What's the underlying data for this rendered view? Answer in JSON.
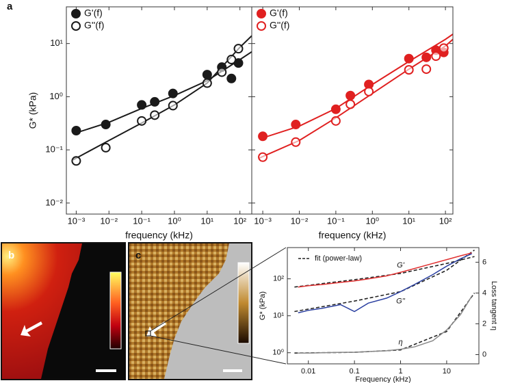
{
  "panels": [
    "a",
    "b",
    "c"
  ],
  "chart_data": [
    {
      "type": "scatter",
      "xlabel": "frequency (kHz)",
      "ylabel": "G* (kPa)",
      "log_x": true,
      "log_y": true,
      "xlim": [
        0.0005,
        230
      ],
      "ylim": [
        0.0062,
        49
      ],
      "xticks": [
        {
          "value": 0.001,
          "label": "10⁻³"
        },
        {
          "value": 0.01,
          "label": "10⁻²"
        },
        {
          "value": 0.1,
          "label": "10⁻¹"
        },
        {
          "value": 1,
          "label": "10⁰"
        },
        {
          "value": 10,
          "label": "10¹"
        },
        {
          "value": 100,
          "label": "10²"
        }
      ],
      "yticks": [
        {
          "value": 0.01,
          "label": "10⁻²"
        },
        {
          "value": 0.1,
          "label": "10⁻¹"
        },
        {
          "value": 1,
          "label": "10⁰"
        },
        {
          "value": 10,
          "label": "10¹"
        }
      ],
      "legend": "upper left",
      "x": [
        0.001,
        0.008,
        0.1,
        0.25,
        0.9,
        10,
        28,
        55,
        90
      ],
      "series": [
        {
          "name": "G'(f)",
          "color": "#1a1a1a",
          "marker": "filled",
          "values": [
            0.23,
            0.3,
            0.7,
            0.8,
            1.15,
            2.6,
            3.6,
            2.2,
            4.3
          ]
        },
        {
          "name": "G''(f)",
          "color": "#1a1a1a",
          "marker": "open",
          "values": [
            0.062,
            0.11,
            0.35,
            0.45,
            0.68,
            1.8,
            2.9,
            5.0,
            8.0
          ]
        }
      ],
      "fits": [
        {
          "color": "#1a1a1a",
          "x": [
            0.0008,
            0.01,
            0.1,
            1,
            10,
            100,
            230
          ],
          "values": [
            0.2,
            0.33,
            0.6,
            1.05,
            2.0,
            5,
            7
          ]
        },
        {
          "color": "#1a1a1a",
          "x": [
            0.0008,
            0.01,
            0.1,
            1,
            10,
            100,
            230
          ],
          "values": [
            0.065,
            0.15,
            0.32,
            0.7,
            1.8,
            8.5,
            14
          ]
        }
      ]
    },
    {
      "type": "scatter",
      "log_x": true,
      "log_y": true,
      "xlabel": "frequency (kHz)",
      "xlim": [
        0.0005,
        160
      ],
      "ylim": [
        0.0062,
        49
      ],
      "ytick_labels": false,
      "xticks": [
        {
          "value": 0.001,
          "label": "10⁻³"
        },
        {
          "value": 0.01,
          "label": "10⁻²"
        },
        {
          "value": 0.1,
          "label": "10⁻¹"
        },
        {
          "value": 1,
          "label": "10⁰"
        },
        {
          "value": 10,
          "label": "10¹"
        },
        {
          "value": 100,
          "label": "10²"
        }
      ],
      "yticks": [
        0.01,
        0.1,
        1,
        10
      ],
      "legend": "upper left",
      "x": [
        0.001,
        0.008,
        0.1,
        0.25,
        0.8,
        10,
        30,
        55,
        90
      ],
      "series": [
        {
          "name": "G'(f)",
          "color": "#e02020",
          "marker": "filled",
          "values": [
            0.18,
            0.3,
            0.58,
            1.05,
            1.7,
            5.2,
            5.5,
            7.5,
            6.8
          ]
        },
        {
          "name": "G''(f)",
          "color": "#e02020",
          "marker": "open",
          "values": [
            0.073,
            0.14,
            0.35,
            0.72,
            1.25,
            3.2,
            3.3,
            5.8,
            8.2
          ]
        }
      ],
      "fits": [
        {
          "color": "#e02020",
          "x": [
            0.0008,
            0.01,
            0.1,
            1,
            10,
            100,
            160
          ],
          "values": [
            0.16,
            0.28,
            0.6,
            1.7,
            4.6,
            12,
            15
          ]
        },
        {
          "color": "#e02020",
          "x": [
            0.0008,
            0.01,
            0.1,
            1,
            10,
            100,
            160
          ],
          "values": [
            0.07,
            0.15,
            0.4,
            1.15,
            3.3,
            9,
            12
          ]
        }
      ]
    },
    {
      "type": "line",
      "xlabel": "Frequency (kHz)",
      "ylabel": "G* (kPa)",
      "y2label": "Loss tangent η",
      "log_x": true,
      "log_y": true,
      "xlim": [
        0.0035,
        50
      ],
      "ylim": [
        0.5,
        700
      ],
      "y2lim": [
        -0.6,
        6.95
      ],
      "xticks": [
        0.01,
        0.1,
        1,
        10
      ],
      "yticks": [
        {
          "value": 1,
          "label": "10⁰"
        },
        {
          "value": 10,
          "label": "10¹"
        },
        {
          "value": 100,
          "label": "10²"
        }
      ],
      "y2ticks": [
        0,
        2,
        4,
        6
      ],
      "fit_label": "fit (power-law)",
      "x": [
        0.006,
        0.01,
        0.02,
        0.05,
        0.1,
        0.2,
        0.5,
        1,
        2,
        5,
        10,
        20,
        35
      ],
      "series": [
        {
          "name": "G'",
          "color": "#e03030",
          "values": [
            60,
            65,
            70,
            80,
            88,
            100,
            120,
            150,
            190,
            260,
            330,
            420,
            500
          ]
        },
        {
          "name": "G''",
          "color": "#2a3fa0",
          "values": [
            12,
            14,
            16,
            20,
            13,
            22,
            30,
            45,
            70,
            130,
            220,
            350,
            480
          ]
        },
        {
          "name": "η",
          "color": "#888888",
          "axis": "y2",
          "values": [
            0.1,
            0.1,
            0.12,
            0.15,
            0.15,
            0.2,
            0.25,
            0.35,
            0.5,
            0.9,
            1.6,
            2.6,
            3.8
          ]
        }
      ],
      "fits": [
        {
          "color": "#222222",
          "x": [
            0.005,
            0.1,
            1,
            10,
            40
          ],
          "values": [
            60,
            95,
            140,
            260,
            400
          ]
        },
        {
          "color": "#222222",
          "x": [
            0.005,
            0.1,
            1,
            10,
            40
          ],
          "values": [
            13,
            25,
            45,
            170,
            600
          ]
        },
        {
          "color": "#222222",
          "axis": "y2",
          "x": [
            0.005,
            0.1,
            1,
            10,
            40
          ],
          "values": [
            0.1,
            0.15,
            0.3,
            1.5,
            4
          ]
        }
      ]
    }
  ]
}
